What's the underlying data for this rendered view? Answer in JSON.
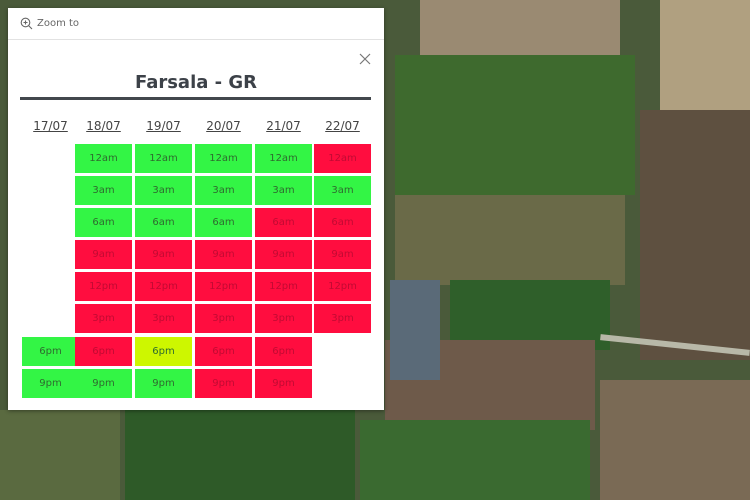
{
  "popup": {
    "zoom_label": "Zoom to",
    "title": "Farsala - GR"
  },
  "colors": {
    "good": "#33f545",
    "bad": "#ff0d3f",
    "moderate": "#cdf700"
  },
  "days": [
    {
      "date": "17/07",
      "slots": [
        null,
        null,
        null,
        null,
        null,
        null,
        {
          "time": "6pm",
          "status": "good"
        },
        {
          "time": "9pm",
          "status": "good"
        }
      ]
    },
    {
      "date": "18/07",
      "slots": [
        {
          "time": "12am",
          "status": "good"
        },
        {
          "time": "3am",
          "status": "good"
        },
        {
          "time": "6am",
          "status": "good"
        },
        {
          "time": "9am",
          "status": "bad"
        },
        {
          "time": "12pm",
          "status": "bad"
        },
        {
          "time": "3pm",
          "status": "bad"
        },
        {
          "time": "6pm",
          "status": "bad"
        },
        {
          "time": "9pm",
          "status": "good"
        }
      ]
    },
    {
      "date": "19/07",
      "slots": [
        {
          "time": "12am",
          "status": "good"
        },
        {
          "time": "3am",
          "status": "good"
        },
        {
          "time": "6am",
          "status": "good"
        },
        {
          "time": "9am",
          "status": "bad"
        },
        {
          "time": "12pm",
          "status": "bad"
        },
        {
          "time": "3pm",
          "status": "bad"
        },
        {
          "time": "6pm",
          "status": "moderate"
        },
        {
          "time": "9pm",
          "status": "good"
        }
      ]
    },
    {
      "date": "20/07",
      "slots": [
        {
          "time": "12am",
          "status": "good"
        },
        {
          "time": "3am",
          "status": "good"
        },
        {
          "time": "6am",
          "status": "good"
        },
        {
          "time": "9am",
          "status": "bad"
        },
        {
          "time": "12pm",
          "status": "bad"
        },
        {
          "time": "3pm",
          "status": "bad"
        },
        {
          "time": "6pm",
          "status": "bad"
        },
        {
          "time": "9pm",
          "status": "bad"
        }
      ]
    },
    {
      "date": "21/07",
      "slots": [
        {
          "time": "12am",
          "status": "good"
        },
        {
          "time": "3am",
          "status": "good"
        },
        {
          "time": "6am",
          "status": "bad"
        },
        {
          "time": "9am",
          "status": "bad"
        },
        {
          "time": "12pm",
          "status": "bad"
        },
        {
          "time": "3pm",
          "status": "bad"
        },
        {
          "time": "6pm",
          "status": "bad"
        },
        {
          "time": "9pm",
          "status": "bad"
        }
      ]
    },
    {
      "date": "22/07",
      "slots": [
        {
          "time": "12am",
          "status": "bad"
        },
        {
          "time": "3am",
          "status": "good"
        },
        {
          "time": "6am",
          "status": "bad"
        },
        {
          "time": "9am",
          "status": "bad"
        },
        {
          "time": "12pm",
          "status": "bad"
        },
        {
          "time": "3pm",
          "status": "bad"
        },
        null,
        null
      ]
    }
  ]
}
